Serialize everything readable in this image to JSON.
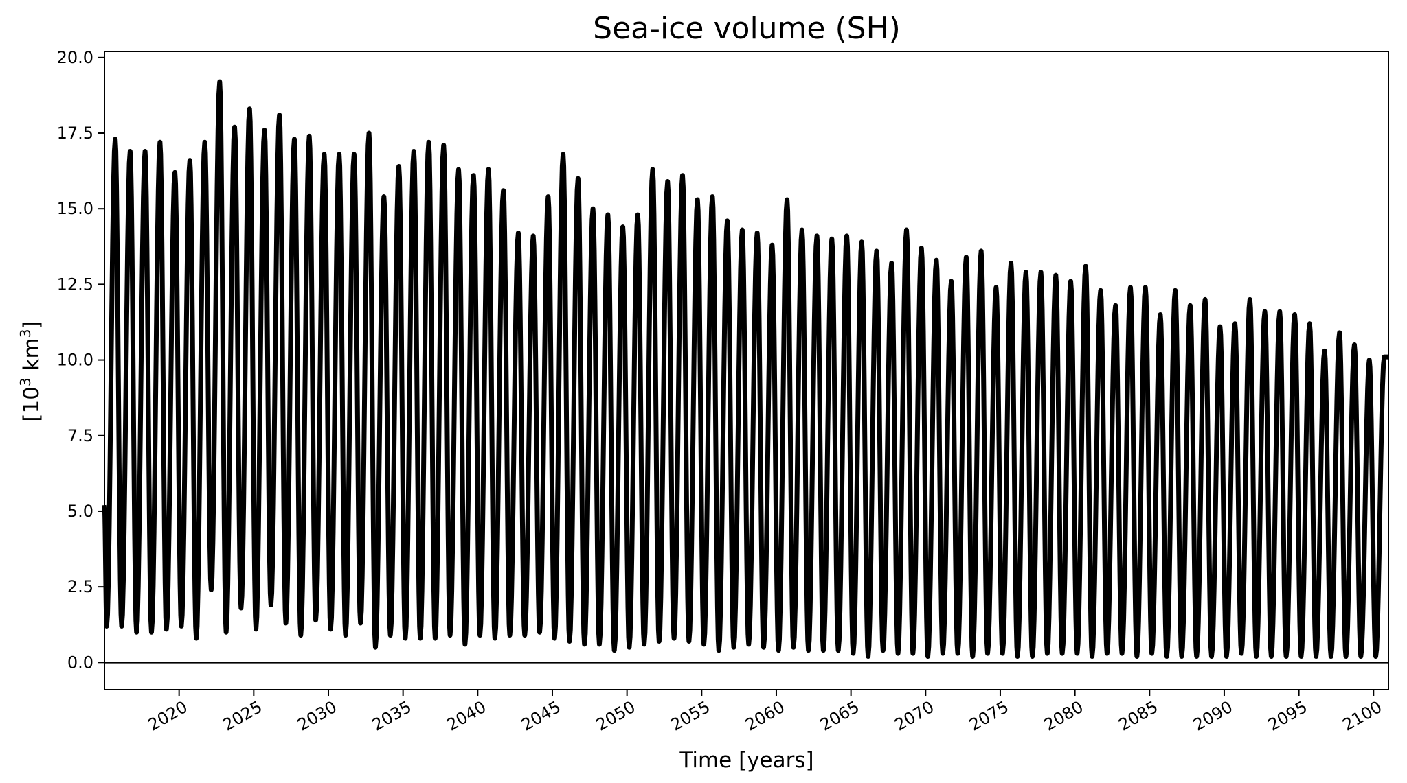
{
  "chart_data": {
    "type": "line",
    "title": "Sea-ice volume (SH)",
    "xlabel": "Time [years]",
    "ylabel_parts": {
      "pre": "[10",
      "sup1": "3",
      "mid": " km",
      "sup2": "3",
      "post": "]"
    },
    "xlim": [
      2015,
      2101
    ],
    "ylim": [
      -0.9,
      20.2
    ],
    "x_ticks": [
      2020,
      2025,
      2030,
      2035,
      2040,
      2045,
      2050,
      2055,
      2060,
      2065,
      2070,
      2075,
      2080,
      2085,
      2090,
      2095,
      2100
    ],
    "y_ticks": [
      "0.0",
      "2.5",
      "5.0",
      "7.5",
      "10.0",
      "12.5",
      "15.0",
      "17.5",
      "20.0"
    ],
    "y_tick_values": [
      0,
      2.5,
      5,
      7.5,
      10,
      12.5,
      15,
      17.5,
      20
    ],
    "reference_line_y": 0,
    "grid": false,
    "line_color": "#000000",
    "series": [
      {
        "start_year": 2015,
        "start_value": 5.2,
        "end_value": 10.1,
        "annual_maxima": [
          17.3,
          16.9,
          16.9,
          17.2,
          16.2,
          16.6,
          17.2,
          19.2,
          17.7,
          18.3,
          17.6,
          18.1,
          17.3,
          17.4,
          16.8,
          16.8,
          16.8,
          17.5,
          15.4,
          16.4,
          16.9,
          17.2,
          17.1,
          16.3,
          16.1,
          16.3,
          15.6,
          14.2,
          14.1,
          15.4,
          16.8,
          16.0,
          15.0,
          14.8,
          14.4,
          14.8,
          16.3,
          15.9,
          16.1,
          15.3,
          15.4,
          14.6,
          14.3,
          14.2,
          13.8,
          15.3,
          14.3,
          14.1,
          14.0,
          14.1,
          13.9,
          13.6,
          13.2,
          14.3,
          13.7,
          13.3,
          12.6,
          13.4,
          13.6,
          12.4,
          13.2,
          12.9,
          12.9,
          12.8,
          12.6,
          13.1,
          12.3,
          11.8,
          12.4,
          12.4,
          11.5,
          12.3,
          11.8,
          12.0,
          11.1,
          11.2,
          12.0,
          11.6,
          11.6,
          11.5,
          11.2,
          10.3,
          10.9,
          10.5,
          10.0,
          10.1
        ],
        "annual_minima": [
          1.2,
          1.2,
          1.0,
          1.0,
          1.1,
          1.2,
          0.8,
          2.4,
          1.0,
          1.8,
          1.1,
          1.9,
          1.3,
          0.9,
          1.4,
          1.1,
          0.9,
          1.3,
          0.5,
          0.9,
          0.8,
          0.8,
          0.8,
          0.9,
          0.6,
          0.9,
          0.8,
          0.9,
          0.9,
          1.0,
          0.8,
          0.7,
          0.6,
          0.6,
          0.4,
          0.5,
          0.6,
          0.7,
          0.8,
          0.7,
          0.6,
          0.4,
          0.5,
          0.6,
          0.5,
          0.4,
          0.5,
          0.4,
          0.4,
          0.4,
          0.3,
          0.2,
          0.4,
          0.3,
          0.3,
          0.2,
          0.3,
          0.3,
          0.2,
          0.3,
          0.3,
          0.2,
          0.2,
          0.3,
          0.3,
          0.3,
          0.2,
          0.3,
          0.3,
          0.2,
          0.3,
          0.2,
          0.2,
          0.2,
          0.2,
          0.2,
          0.3,
          0.2,
          0.2,
          0.2,
          0.2,
          0.2,
          0.2,
          0.2,
          0.2,
          0.2
        ]
      }
    ]
  }
}
